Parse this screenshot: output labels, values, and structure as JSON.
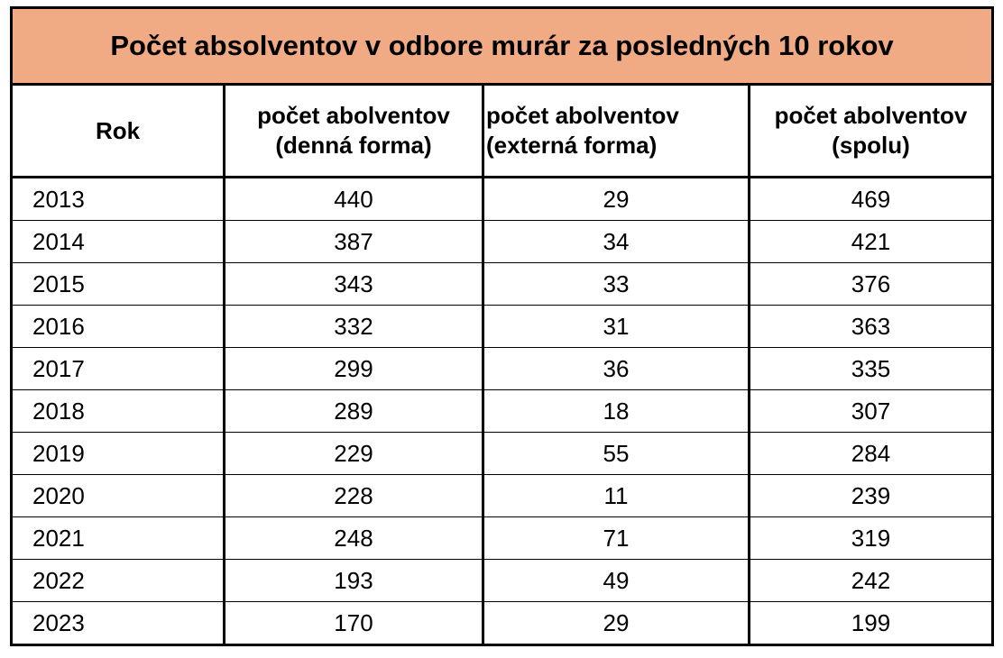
{
  "chart_data": {
    "type": "table",
    "title": "Počet absolventov v odbore murár za posledných 10 rokov",
    "columns": [
      "Rok",
      "počet abolventov (denná forma)",
      "počet abolventov (externá forma)",
      "počet abolventov (spolu)"
    ],
    "header_lines": [
      [
        "Rok"
      ],
      [
        "počet abolventov",
        "(denná forma)"
      ],
      [
        "počet abolventov",
        "(externá forma)"
      ],
      [
        "počet abolventov",
        "(spolu)"
      ]
    ],
    "rows": [
      [
        "2013",
        "440",
        "29",
        "469"
      ],
      [
        "2014",
        "387",
        "34",
        "421"
      ],
      [
        "2015",
        "343",
        "33",
        "376"
      ],
      [
        "2016",
        "332",
        "31",
        "363"
      ],
      [
        "2017",
        "299",
        "36",
        "335"
      ],
      [
        "2018",
        "289",
        "18",
        "307"
      ],
      [
        "2019",
        "229",
        "55",
        "284"
      ],
      [
        "2020",
        "228",
        "11",
        "239"
      ],
      [
        "2021",
        "248",
        "71",
        "319"
      ],
      [
        "2022",
        "193",
        "49",
        "242"
      ],
      [
        "2023",
        "170",
        "29",
        "199"
      ]
    ],
    "title_background": "#f0aa84"
  }
}
